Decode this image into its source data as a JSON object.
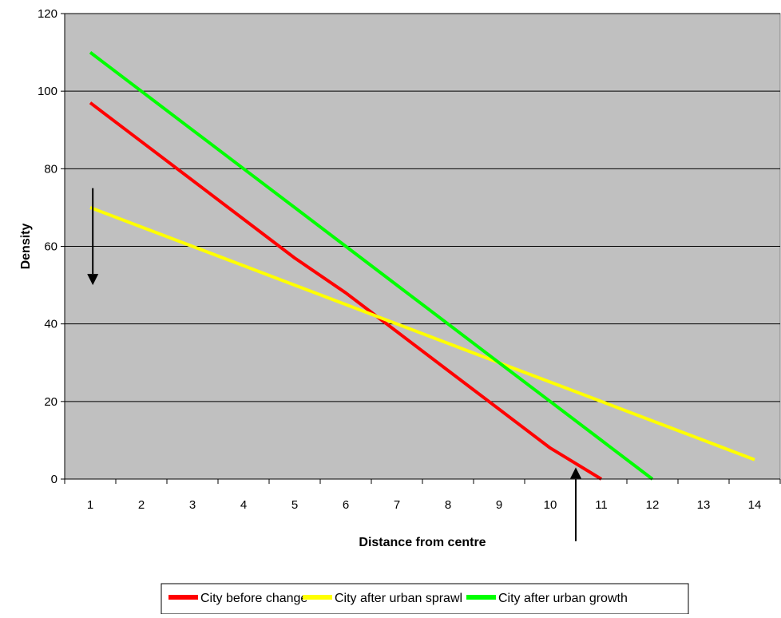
{
  "chart_data": {
    "type": "line",
    "title": "",
    "xlabel": "Distance from centre",
    "ylabel": "Density",
    "x": [
      1,
      2,
      3,
      4,
      5,
      6,
      7,
      8,
      9,
      10,
      11,
      12,
      13,
      14
    ],
    "x_tick_labels": [
      "1",
      "2",
      "3",
      "4",
      "5",
      "6",
      "7",
      "8",
      "9",
      "10",
      "11",
      "12",
      "13",
      "14"
    ],
    "y_tick_labels": [
      "0",
      "20",
      "40",
      "60",
      "80",
      "100",
      "120"
    ],
    "ylim": [
      0,
      120
    ],
    "grid": "horizontal",
    "plot_background": "#C0C0C0",
    "legend_position": "bottom",
    "series": [
      {
        "name": "City before change",
        "color": "#FF0000",
        "x": [
          1,
          2,
          3,
          4,
          5,
          6,
          7,
          8,
          9,
          10,
          11
        ],
        "values": [
          97,
          87,
          77,
          67,
          57,
          48,
          38,
          28,
          18,
          8,
          0
        ]
      },
      {
        "name": "City after urban sprawl",
        "color": "#FFFF00",
        "x": [
          1,
          2,
          3,
          4,
          5,
          6,
          7,
          8,
          9,
          10,
          11,
          12,
          13,
          14
        ],
        "values": [
          70,
          65,
          60,
          55,
          50,
          45,
          40,
          35,
          30,
          25,
          20,
          15,
          10,
          5
        ]
      },
      {
        "name": "City after urban growth",
        "color": "#00FF00",
        "x": [
          1,
          2,
          3,
          4,
          5,
          6,
          7,
          8,
          9,
          10,
          11,
          12
        ],
        "values": [
          110,
          100,
          90,
          80,
          70,
          60,
          50,
          40,
          30,
          20,
          10,
          0
        ]
      }
    ],
    "annotations": [
      {
        "type": "arrow",
        "direction": "down",
        "x": 1.05,
        "from_y": 75,
        "to_y": 50
      },
      {
        "type": "arrow",
        "direction": "up",
        "x": 10.5,
        "from_y": -16,
        "to_y": 3
      }
    ]
  }
}
